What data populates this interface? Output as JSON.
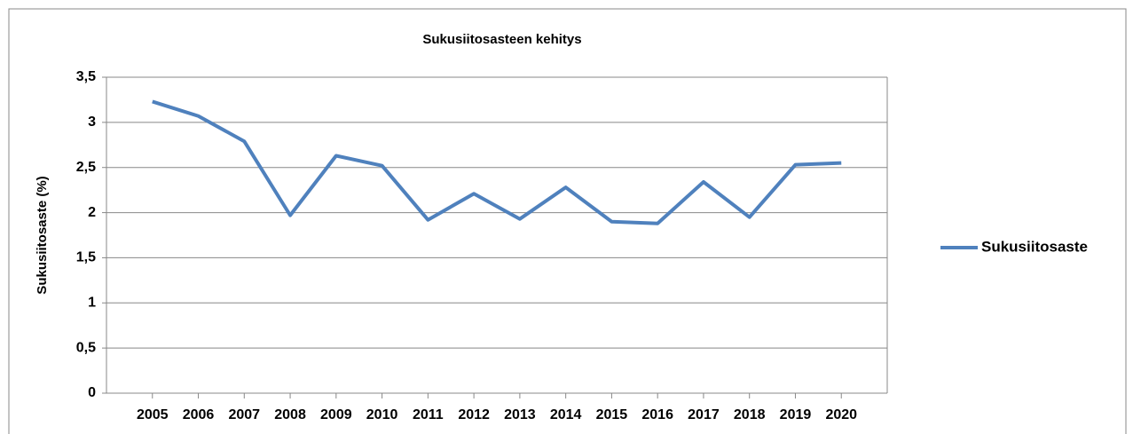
{
  "chart_data": {
    "type": "line",
    "title": "Sukusiitosasteen kehitys",
    "y_label": "Sukusiitosaste (%)",
    "categories": [
      "2005",
      "2006",
      "2007",
      "2008",
      "2009",
      "2010",
      "2011",
      "2012",
      "2013",
      "2014",
      "2015",
      "2016",
      "2017",
      "2018",
      "2019",
      "2020"
    ],
    "series": [
      {
        "name": "Sukusiitosaste",
        "color": "#4f81bd",
        "values": [
          3.23,
          3.07,
          2.79,
          1.97,
          2.63,
          2.52,
          1.92,
          2.21,
          1.93,
          2.28,
          1.9,
          1.88,
          2.34,
          1.95,
          2.53,
          2.55
        ]
      }
    ],
    "ylim": [
      0,
      3.5
    ],
    "yticks": [
      0,
      {
        "value": 0.5,
        "label": "0,5"
      },
      1,
      {
        "value": 1.5,
        "label": "1,5"
      },
      2,
      {
        "value": 2.5,
        "label": "2,5"
      },
      3,
      {
        "value": 3.5,
        "label": "3,5"
      }
    ],
    "grid": true,
    "legend": "right"
  }
}
